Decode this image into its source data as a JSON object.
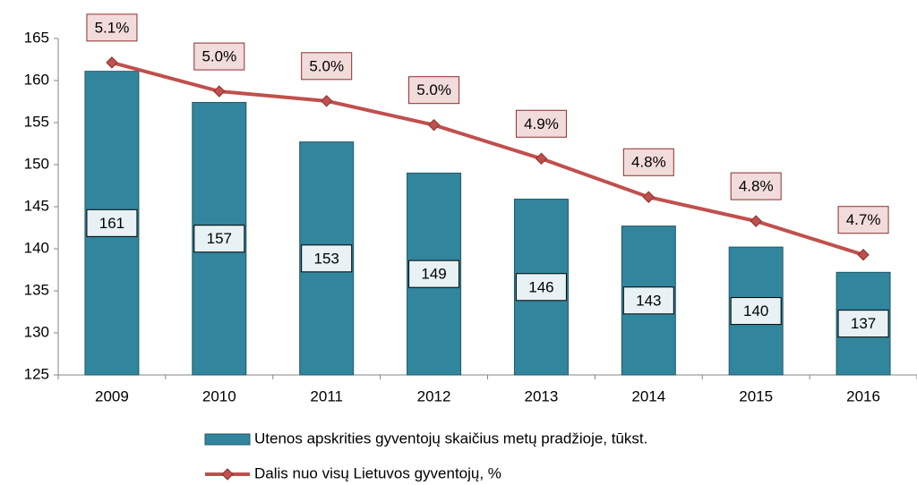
{
  "chart_data": {
    "type": "bar_line",
    "categories": [
      "2009",
      "2010",
      "2011",
      "2012",
      "2013",
      "2014",
      "2015",
      "2016"
    ],
    "series": [
      {
        "name": "Utenos apskrities gyventojų skaičius metų pradžioje, tūkst.",
        "type": "bar",
        "color": "#31859c",
        "values": [
          161.1,
          157.4,
          152.7,
          149.0,
          145.9,
          142.7,
          140.2,
          137.2
        ],
        "value_labels": [
          "161",
          "157",
          "153",
          "149",
          "146",
          "143",
          "140",
          "137"
        ]
      },
      {
        "name": "Dalis nuo visų Lietuvos gyventojų, %",
        "type": "line",
        "axis": "y2",
        "color": "#c0504d",
        "values": [
          5.1,
          5.04,
          5.02,
          4.97,
          4.9,
          4.82,
          4.77,
          4.7
        ],
        "value_labels": [
          "5.1%",
          "5.0%",
          "5.0%",
          "5.0%",
          "4.9%",
          "4.8%",
          "4.8%",
          "4.7%"
        ]
      }
    ],
    "ylim": [
      125,
      165
    ],
    "yticks": [
      125,
      130,
      135,
      140,
      145,
      150,
      155,
      160,
      165
    ],
    "y2lim": [
      4.45,
      5.15
    ],
    "legend": "bottom"
  }
}
